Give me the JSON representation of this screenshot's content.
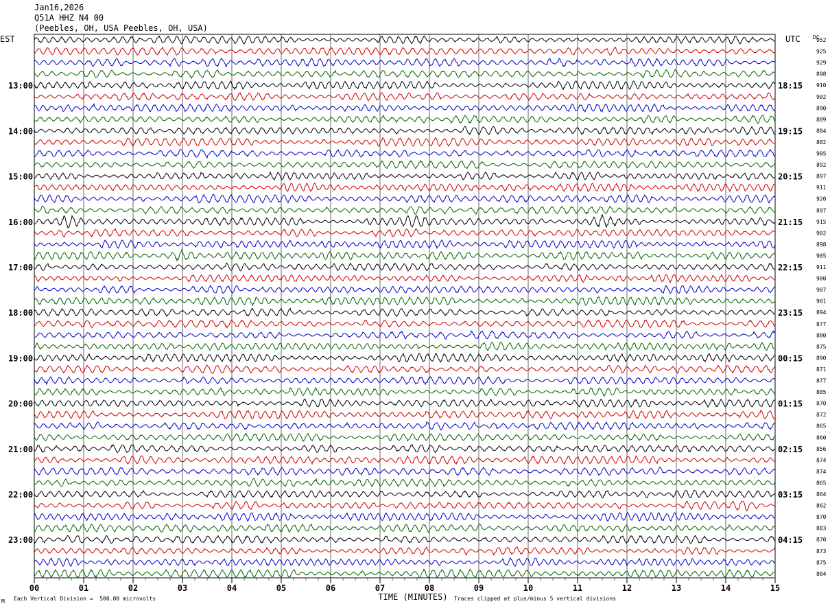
{
  "header": {
    "date": "Jan16,2026",
    "station": "Q51A HHZ N4 00",
    "location": "(Peebles, OH, USA Peebles, OH, USA)"
  },
  "left_timezone": "EST",
  "right_timezone": "UTC",
  "dc_label": "DC",
  "footer": {
    "scale_note": "Each Vertical Division =  500.00 microvolts",
    "clip_note": "Traces clipped at plus/minus 5 vertical divisions",
    "corner_mark": "M"
  },
  "colors": {
    "trace_cycle": [
      "#000000",
      "#d00000",
      "#0000c8",
      "#006400"
    ],
    "grid": "#000000"
  },
  "chart_data": {
    "type": "line",
    "title": "Jan16,2026",
    "xlabel": "TIME (MINUTES)",
    "ylabel": "",
    "x_ticks": [
      "00",
      "01",
      "02",
      "03",
      "04",
      "05",
      "06",
      "07",
      "08",
      "09",
      "10",
      "11",
      "12",
      "13",
      "14",
      "15"
    ],
    "xlim": [
      0,
      15
    ],
    "left_hour_labels": [
      "13:00",
      "14:00",
      "15:00",
      "16:00",
      "17:00",
      "18:00",
      "19:00",
      "20:00",
      "21:00",
      "22:00",
      "23:00"
    ],
    "right_hour_labels": [
      "18:15",
      "19:15",
      "20:15",
      "21:15",
      "22:15",
      "23:15",
      "00:15",
      "01:15",
      "02:15",
      "03:15",
      "04:15"
    ],
    "dc_offsets": [
      952,
      925,
      929,
      898,
      910,
      902,
      890,
      889,
      884,
      882,
      905,
      892,
      897,
      911,
      920,
      897,
      915,
      902,
      898,
      905,
      911,
      900,
      907,
      901,
      894,
      877,
      880,
      875,
      890,
      871,
      877,
      885,
      870,
      872,
      865,
      860,
      856,
      874,
      874,
      865,
      864,
      862,
      870,
      883,
      870,
      873,
      875,
      884
    ],
    "event_bursts": [
      {
        "trace_index": 16,
        "minute": 0.7
      },
      {
        "trace_index": 16,
        "minute": 7.7
      },
      {
        "trace_index": 16,
        "minute": 11.5
      },
      {
        "trace_index": 19,
        "minute": 3.0
      },
      {
        "trace_index": 41,
        "minute": 14.4
      }
    ],
    "legend": ""
  }
}
